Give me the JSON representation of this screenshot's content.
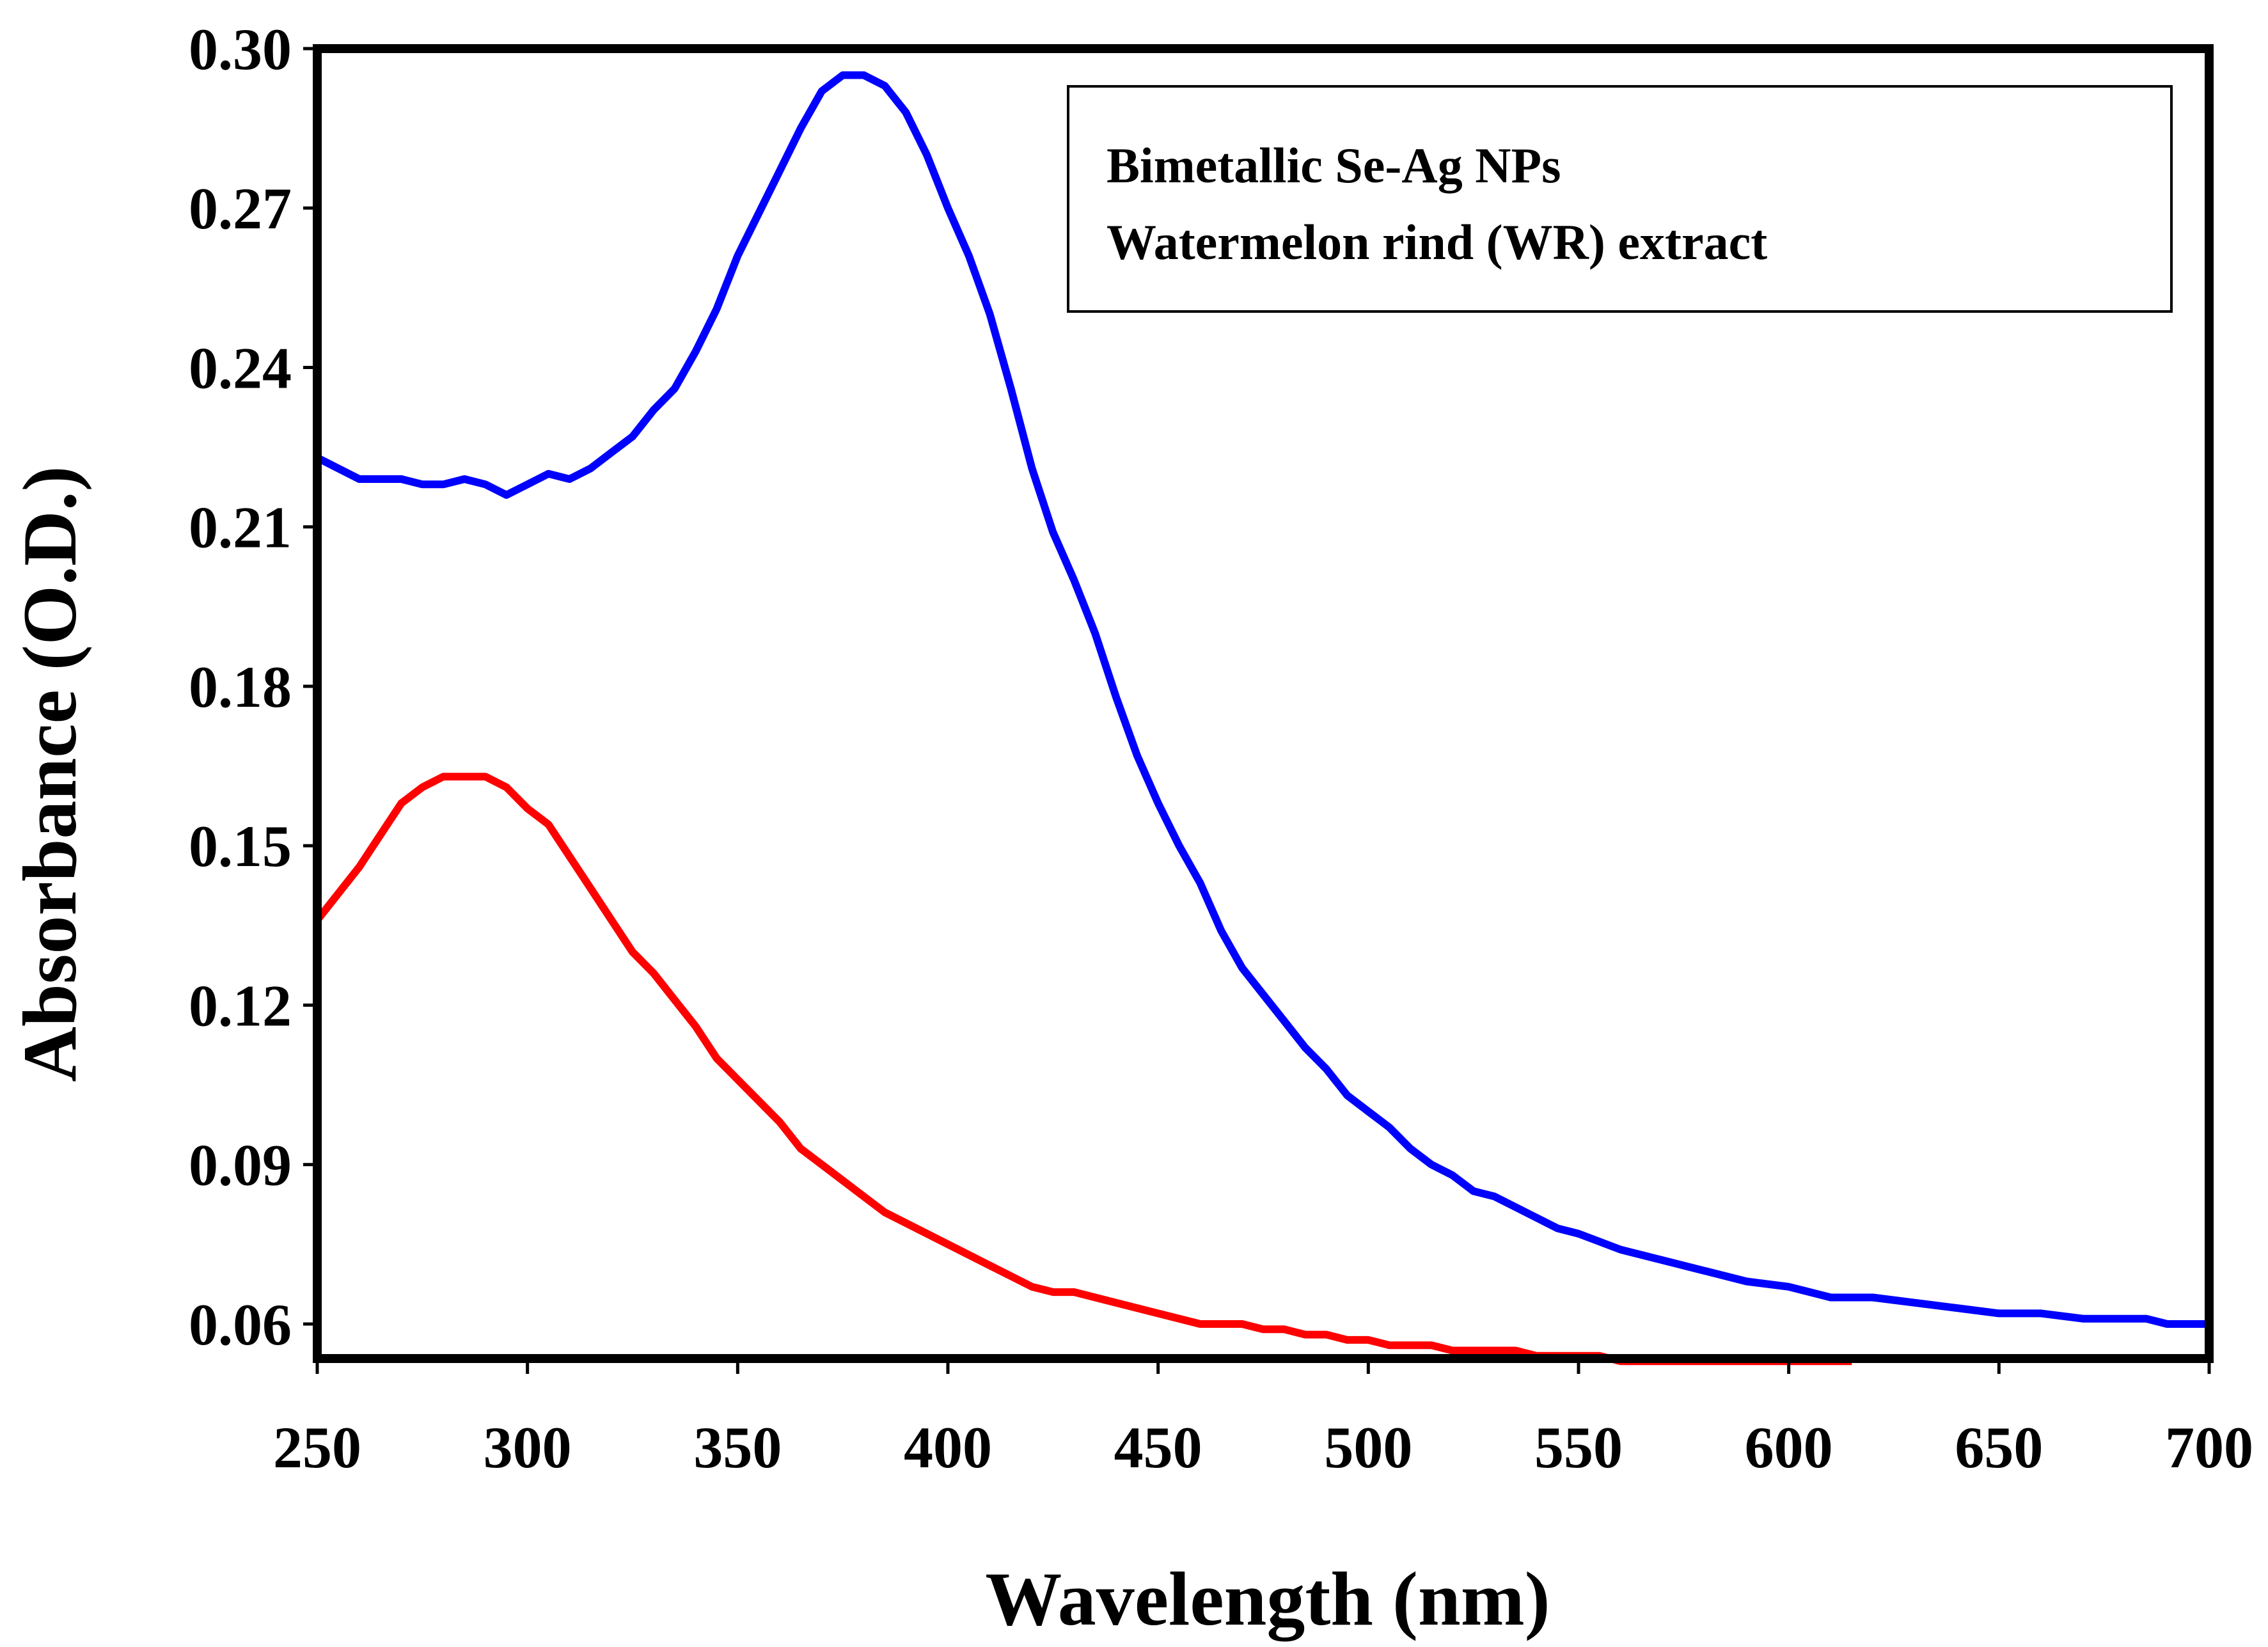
{
  "chart_data": {
    "type": "line",
    "title": "",
    "xlabel": "Wavelength (nm)",
    "ylabel": "Absorbance (O.D.)",
    "xlim": [
      250,
      700
    ],
    "ylim": [
      0.053,
      0.3
    ],
    "x_ticks": [
      "250",
      "300",
      "350",
      "400",
      "450",
      "500",
      "550",
      "600",
      "650",
      "700"
    ],
    "y_ticks": [
      "0.06",
      "0.09",
      "0.12",
      "0.15",
      "0.18",
      "0.21",
      "0.24",
      "0.27",
      "0.30"
    ],
    "grid": false,
    "legend_box": {
      "position": "top-right",
      "lines": [
        "Bimetallic Se-Ag NPs",
        "Watermelon rind (WR) extract"
      ]
    },
    "series": [
      {
        "name": "Bimetallic Se-Ag NPs",
        "color": "#0000ff",
        "x": [
          250,
          260,
          270,
          275,
          280,
          285,
          290,
          295,
          300,
          305,
          310,
          315,
          320,
          325,
          330,
          335,
          340,
          345,
          350,
          355,
          360,
          365,
          370,
          375,
          380,
          385,
          390,
          395,
          400,
          405,
          410,
          415,
          420,
          425,
          430,
          435,
          440,
          445,
          450,
          455,
          460,
          465,
          470,
          475,
          480,
          485,
          490,
          495,
          500,
          505,
          510,
          515,
          520,
          525,
          530,
          535,
          540,
          545,
          550,
          560,
          570,
          580,
          590,
          600,
          610,
          620,
          630,
          640,
          650,
          660,
          670,
          680,
          685,
          690,
          700
        ],
        "y": [
          0.223,
          0.219,
          0.219,
          0.218,
          0.218,
          0.219,
          0.218,
          0.216,
          0.218,
          0.22,
          0.219,
          0.221,
          0.224,
          0.227,
          0.232,
          0.236,
          0.243,
          0.251,
          0.261,
          0.269,
          0.277,
          0.285,
          0.292,
          0.295,
          0.295,
          0.293,
          0.288,
          0.28,
          0.27,
          0.261,
          0.25,
          0.236,
          0.221,
          0.209,
          0.2,
          0.19,
          0.178,
          0.167,
          0.158,
          0.15,
          0.143,
          0.134,
          0.127,
          0.122,
          0.117,
          0.112,
          0.108,
          0.103,
          0.1,
          0.097,
          0.093,
          0.09,
          0.088,
          0.085,
          0.084,
          0.082,
          0.08,
          0.078,
          0.077,
          0.074,
          0.072,
          0.07,
          0.068,
          0.067,
          0.065,
          0.065,
          0.064,
          0.063,
          0.062,
          0.062,
          0.061,
          0.061,
          0.061,
          0.06,
          0.06
        ]
      },
      {
        "name": "Watermelon rind (WR) extract",
        "color": "#ff0000",
        "x": [
          250,
          260,
          265,
          270,
          275,
          280,
          285,
          290,
          295,
          300,
          305,
          310,
          315,
          320,
          325,
          330,
          335,
          340,
          345,
          350,
          355,
          360,
          365,
          370,
          375,
          380,
          385,
          390,
          400,
          410,
          415,
          420,
          425,
          430,
          440,
          450,
          460,
          470,
          475,
          480,
          485,
          490,
          495,
          500,
          505,
          510,
          515,
          520,
          525,
          530,
          535,
          540,
          545,
          550,
          555,
          560,
          570,
          580,
          590,
          600,
          610,
          615
        ],
        "y": [
          0.136,
          0.146,
          0.152,
          0.158,
          0.161,
          0.163,
          0.163,
          0.163,
          0.161,
          0.157,
          0.154,
          0.148,
          0.142,
          0.136,
          0.13,
          0.126,
          0.121,
          0.116,
          0.11,
          0.106,
          0.102,
          0.098,
          0.093,
          0.09,
          0.087,
          0.084,
          0.081,
          0.079,
          0.075,
          0.071,
          0.069,
          0.067,
          0.066,
          0.066,
          0.064,
          0.062,
          0.06,
          0.06,
          0.059,
          0.059,
          0.058,
          0.058,
          0.057,
          0.057,
          0.056,
          0.056,
          0.056,
          0.055,
          0.055,
          0.055,
          0.055,
          0.054,
          0.054,
          0.054,
          0.054,
          0.053,
          0.053,
          0.053,
          0.053,
          0.053,
          0.053,
          0.053
        ]
      }
    ]
  }
}
